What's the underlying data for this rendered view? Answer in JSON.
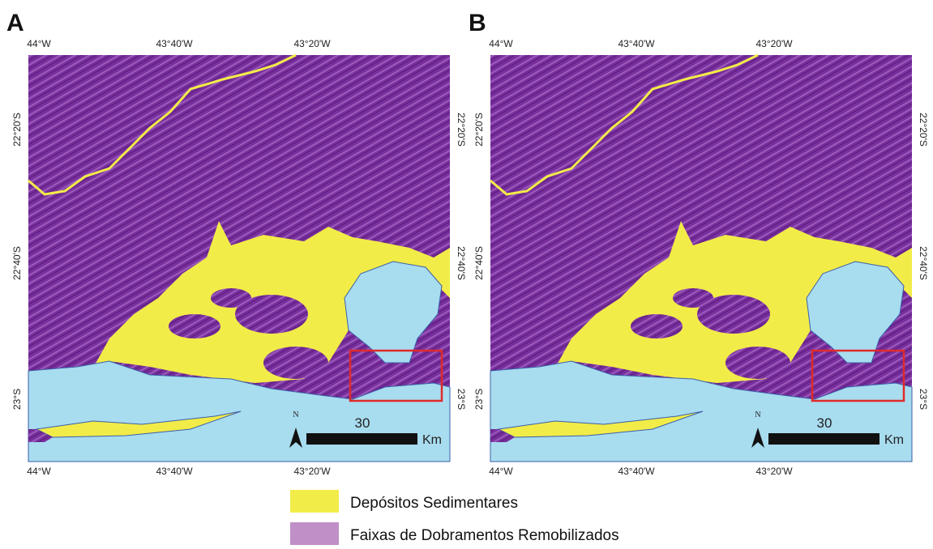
{
  "panels": [
    {
      "label": "A"
    },
    {
      "label": "B"
    }
  ],
  "longitude_labels": [
    "44°W",
    "43°40'W",
    "43°20'W"
  ],
  "latitude_labels": [
    "22°20'S",
    "22°40'S",
    "23°S"
  ],
  "north_label": "N",
  "scale": {
    "distance": "30",
    "unit": "Km"
  },
  "legend": [
    {
      "label": "Depósitos Sedimentares",
      "color": "#f2ec48"
    },
    {
      "label": "Faixas de Dobramentos Remobilizados",
      "color": "#c08fc8"
    }
  ]
}
